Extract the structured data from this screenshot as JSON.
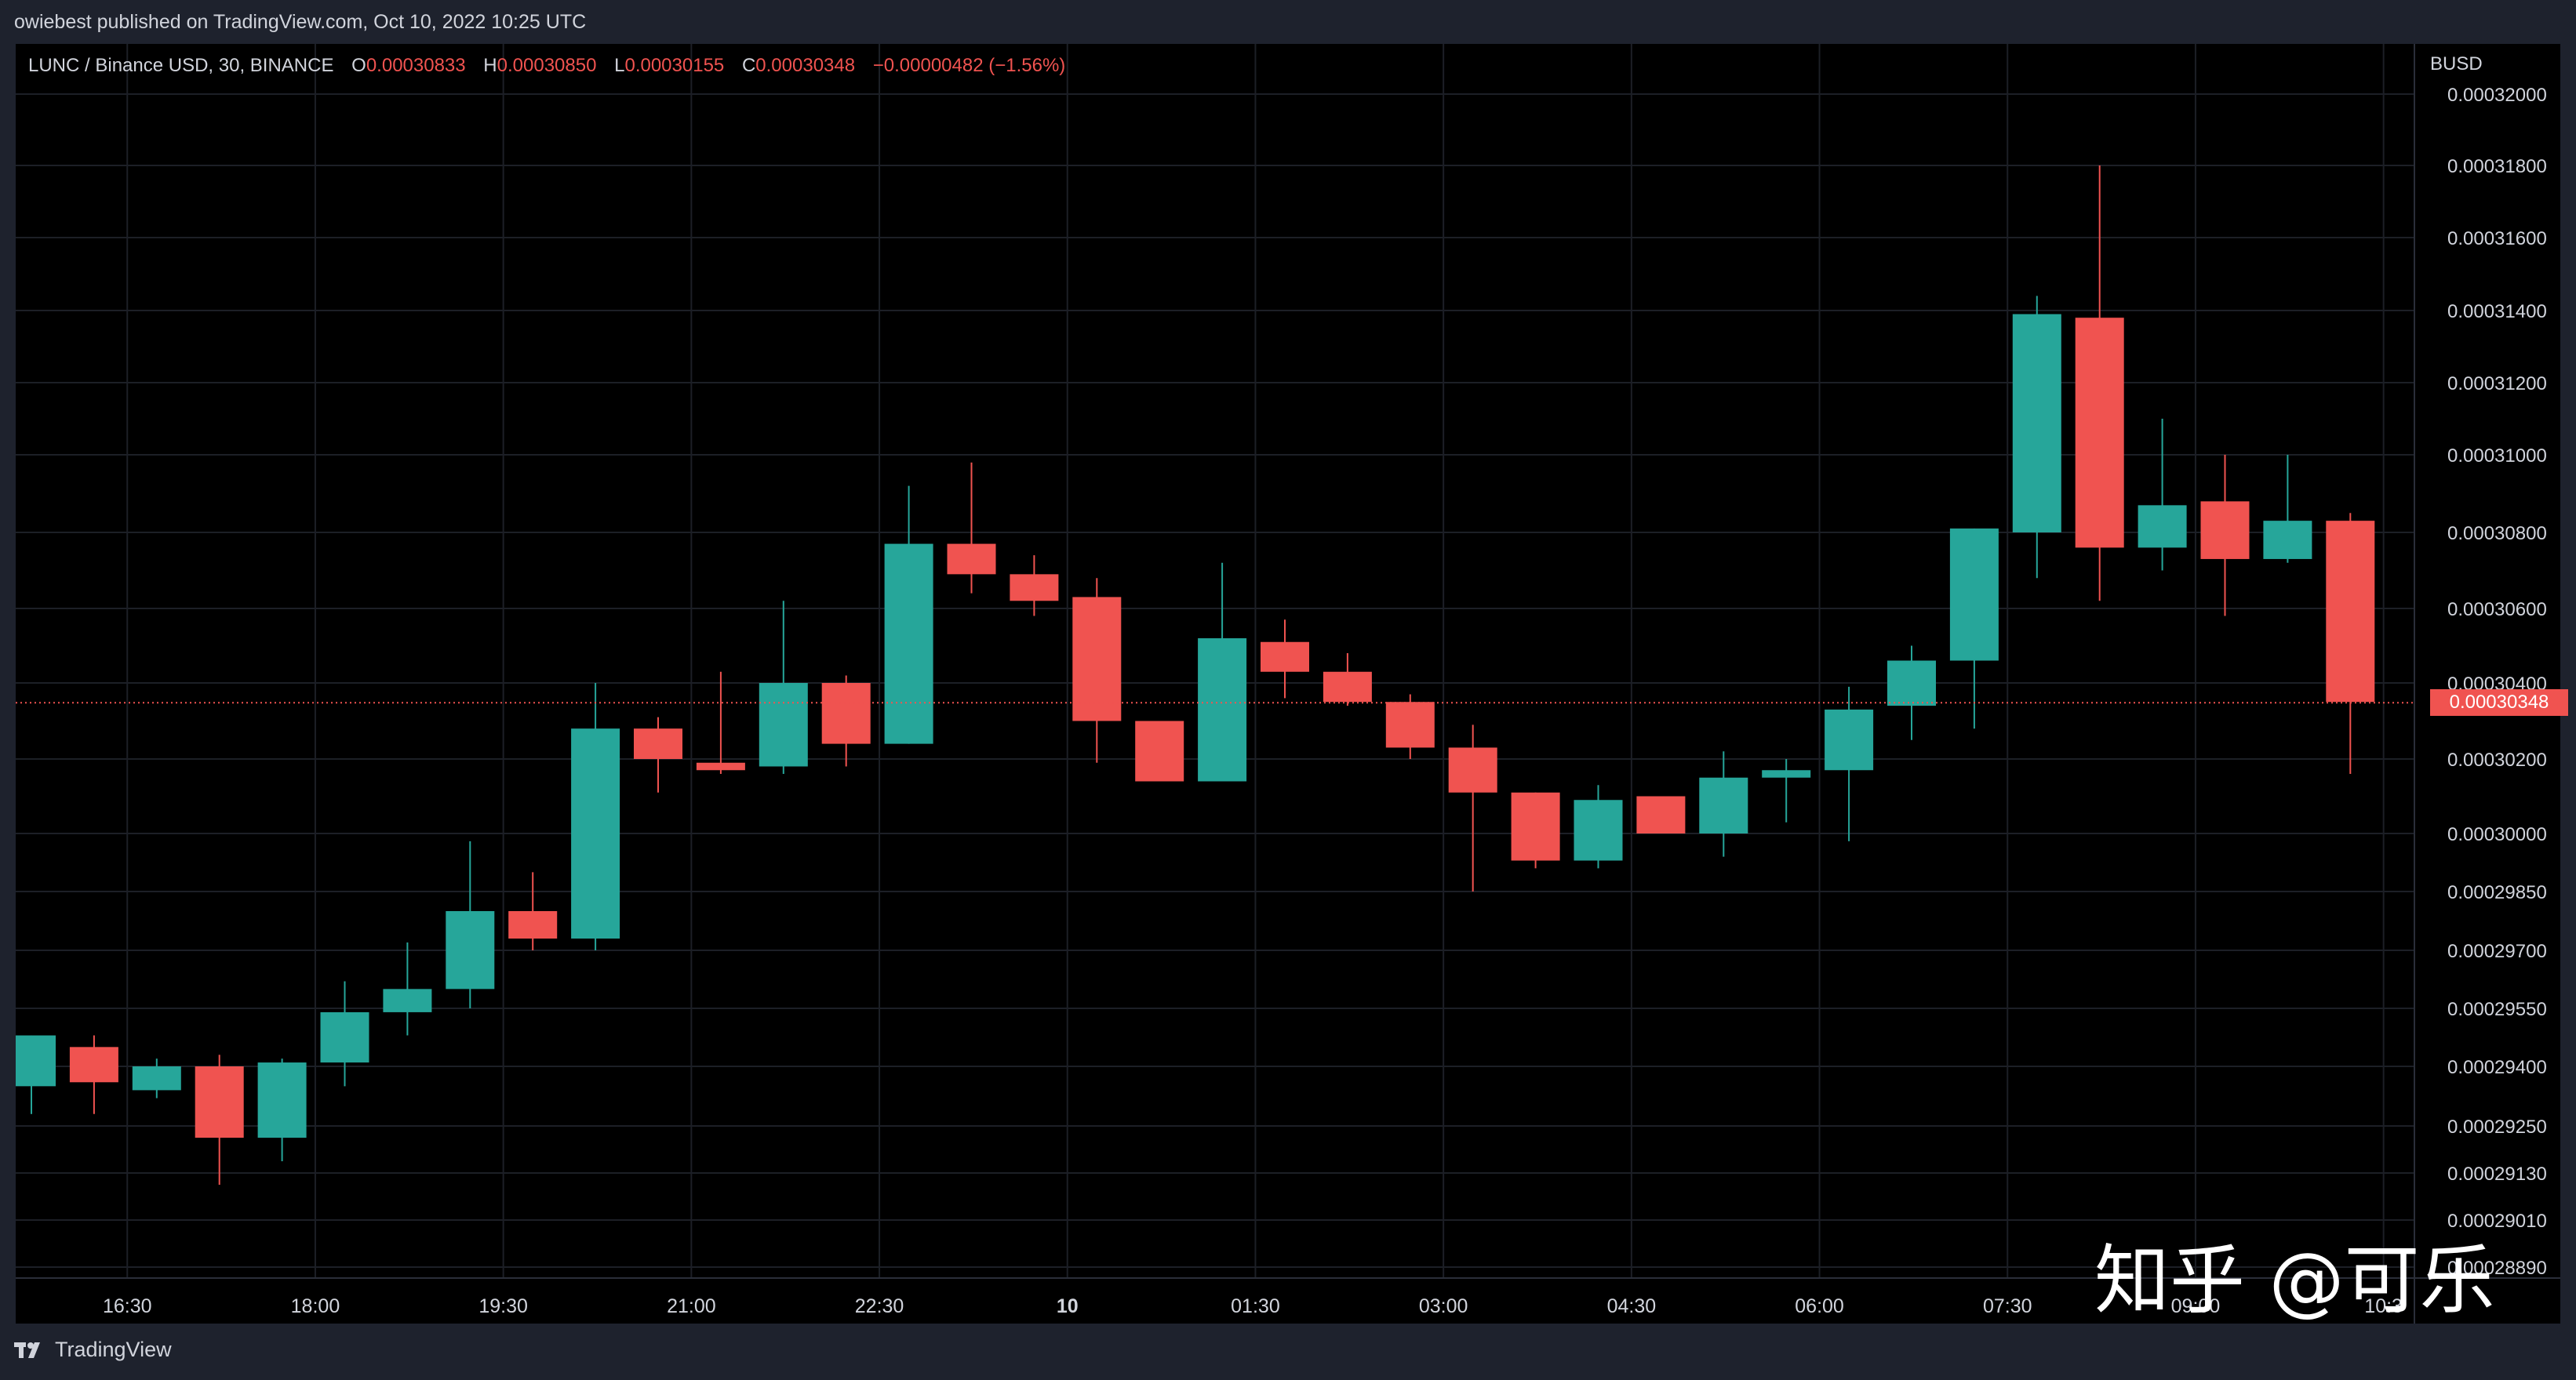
{
  "header": {
    "published_text": "owiebest published on TradingView.com, Oct 10, 2022 10:25 UTC"
  },
  "legend": {
    "symbol": "LUNC / Binance USD, 30, BINANCE",
    "o_label": "O",
    "o_value": "0.00030833",
    "h_label": "H",
    "h_value": "0.00030850",
    "l_label": "L",
    "l_value": "0.00030155",
    "c_label": "C",
    "c_value": "0.00030348",
    "change": "−0.00000482 (−1.56%)"
  },
  "price_axis": {
    "unit": "BUSD",
    "last_price": "0.00030348"
  },
  "footer": {
    "brand": "TradingView"
  },
  "watermark": {
    "text": "知乎 @可乐"
  },
  "colors": {
    "up": "#26a69a",
    "down": "#f05350",
    "background": "#000000",
    "grid": "#1c1f26",
    "text": "#d1d4dc"
  },
  "chart_data": {
    "type": "candlestick",
    "interval": "30",
    "ylabel": "BUSD",
    "y_ticks": [
      "0.00032000",
      "0.00031800",
      "0.00031600",
      "0.00031400",
      "0.00031200",
      "0.00031000",
      "0.00030800",
      "0.00030600",
      "0.00030400",
      "0.00030200",
      "0.00030000",
      "0.00029850",
      "0.00029700",
      "0.00029550",
      "0.00029400",
      "0.00029250",
      "0.00029130",
      "0.00029010",
      "0.00028890"
    ],
    "x_ticks": [
      "16:30",
      "18:00",
      "19:30",
      "21:00",
      "22:30",
      "10",
      "01:30",
      "03:00",
      "04:30",
      "06:00",
      "07:30",
      "09:00",
      "10:3"
    ],
    "last_price": 0.00030348,
    "grid": true,
    "candles": [
      {
        "o": 0.0002935,
        "h": 0.0002948,
        "l": 0.0002928,
        "c": 0.0002948
      },
      {
        "o": 0.0002945,
        "h": 0.0002948,
        "l": 0.0002928,
        "c": 0.0002936
      },
      {
        "o": 0.0002934,
        "h": 0.0002942,
        "l": 0.0002932,
        "c": 0.000294
      },
      {
        "o": 0.000294,
        "h": 0.0002943,
        "l": 0.000291,
        "c": 0.0002922
      },
      {
        "o": 0.0002922,
        "h": 0.0002942,
        "l": 0.0002916,
        "c": 0.0002941
      },
      {
        "o": 0.0002941,
        "h": 0.0002962,
        "l": 0.0002935,
        "c": 0.0002954
      },
      {
        "o": 0.0002954,
        "h": 0.0002972,
        "l": 0.0002948,
        "c": 0.000296
      },
      {
        "o": 0.000296,
        "h": 0.0002998,
        "l": 0.0002955,
        "c": 0.000298
      },
      {
        "o": 0.000298,
        "h": 0.000299,
        "l": 0.000297,
        "c": 0.0002973
      },
      {
        "o": 0.0002973,
        "h": 0.000304,
        "l": 0.000297,
        "c": 0.0003028
      },
      {
        "o": 0.0003028,
        "h": 0.0003031,
        "l": 0.0003011,
        "c": 0.000302
      },
      {
        "o": 0.0003019,
        "h": 0.0003043,
        "l": 0.0003016,
        "c": 0.0003017
      },
      {
        "o": 0.0003018,
        "h": 0.0003062,
        "l": 0.0003016,
        "c": 0.000304
      },
      {
        "o": 0.000304,
        "h": 0.0003042,
        "l": 0.0003018,
        "c": 0.0003024
      },
      {
        "o": 0.0003024,
        "h": 0.0003092,
        "l": 0.0003024,
        "c": 0.0003077
      },
      {
        "o": 0.0003077,
        "h": 0.0003098,
        "l": 0.0003064,
        "c": 0.0003069
      },
      {
        "o": 0.0003069,
        "h": 0.0003074,
        "l": 0.0003058,
        "c": 0.0003062
      },
      {
        "o": 0.0003063,
        "h": 0.0003068,
        "l": 0.0003019,
        "c": 0.000303
      },
      {
        "o": 0.000303,
        "h": 0.000303,
        "l": 0.0003014,
        "c": 0.0003014
      },
      {
        "o": 0.0003014,
        "h": 0.0003072,
        "l": 0.0003014,
        "c": 0.0003052
      },
      {
        "o": 0.0003051,
        "h": 0.0003057,
        "l": 0.0003036,
        "c": 0.0003043
      },
      {
        "o": 0.0003043,
        "h": 0.0003048,
        "l": 0.0003034,
        "c": 0.0003035
      },
      {
        "o": 0.0003035,
        "h": 0.0003037,
        "l": 0.000302,
        "c": 0.0003023
      },
      {
        "o": 0.0003023,
        "h": 0.0003029,
        "l": 0.0002985,
        "c": 0.0003011
      },
      {
        "o": 0.0003011,
        "h": 0.0003011,
        "l": 0.0002991,
        "c": 0.0002993
      },
      {
        "o": 0.0002993,
        "h": 0.0003013,
        "l": 0.0002991,
        "c": 0.0003009
      },
      {
        "o": 0.000301,
        "h": 0.000301,
        "l": 0.0003,
        "c": 0.0003
      },
      {
        "o": 0.0003,
        "h": 0.0003022,
        "l": 0.0002994,
        "c": 0.0003015
      },
      {
        "o": 0.0003015,
        "h": 0.000302,
        "l": 0.0003003,
        "c": 0.0003017
      },
      {
        "o": 0.0003017,
        "h": 0.0003039,
        "l": 0.0002998,
        "c": 0.0003033
      },
      {
        "o": 0.0003034,
        "h": 0.000305,
        "l": 0.0003025,
        "c": 0.0003046
      },
      {
        "o": 0.0003046,
        "h": 0.0003081,
        "l": 0.0003028,
        "c": 0.0003081
      },
      {
        "o": 0.000308,
        "h": 0.0003144,
        "l": 0.0003068,
        "c": 0.0003139
      },
      {
        "o": 0.0003138,
        "h": 0.000318,
        "l": 0.0003062,
        "c": 0.0003076
      },
      {
        "o": 0.0003076,
        "h": 0.000311,
        "l": 0.000307,
        "c": 0.0003087
      },
      {
        "o": 0.0003088,
        "h": 0.00031,
        "l": 0.0003058,
        "c": 0.0003073
      },
      {
        "o": 0.0003073,
        "h": 0.00031,
        "l": 0.0003072,
        "c": 0.0003083
      },
      {
        "o": 0.0003083,
        "h": 0.0003085,
        "l": 0.0003016,
        "c": 0.0003035
      }
    ]
  }
}
